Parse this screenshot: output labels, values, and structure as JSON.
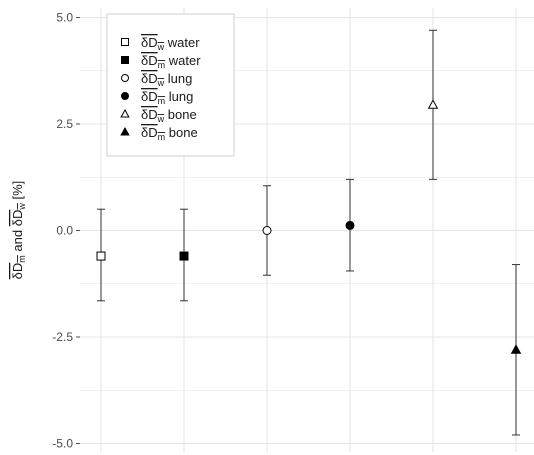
{
  "chart_data": {
    "type": "scatter",
    "title": "",
    "xlabel": "",
    "ylabel": {
      "prefix": "δD",
      "first_subscript": "m",
      "joiner": "and",
      "second_subscript": "w",
      "unit": "[%]"
    },
    "ylim": [
      -5.0,
      5.0
    ],
    "y_ticks": [
      {
        "value": 5.0,
        "label": "5.0"
      },
      {
        "value": 2.5,
        "label": "2.5"
      },
      {
        "value": 0.0,
        "label": "0.0"
      },
      {
        "value": -2.5,
        "label": "-2.5"
      },
      {
        "value": -5.0,
        "label": "-5.0"
      }
    ],
    "grid": true,
    "legend_position": "top-left",
    "series": [
      {
        "base": "δD",
        "subscript": "w",
        "medium": "water",
        "marker": "open-square",
        "x": 1,
        "y": -0.6,
        "err_low": -1.65,
        "err_high": 0.5
      },
      {
        "base": "δD",
        "subscript": "m",
        "medium": "water",
        "marker": "filled-square",
        "x": 2,
        "y": -0.6,
        "err_low": -1.65,
        "err_high": 0.5
      },
      {
        "base": "δD",
        "subscript": "w",
        "medium": "lung",
        "marker": "open-circle",
        "x": 3,
        "y": 0.0,
        "err_low": -1.05,
        "err_high": 1.05
      },
      {
        "base": "δD",
        "subscript": "m",
        "medium": "lung",
        "marker": "filled-circle",
        "x": 4,
        "y": 0.12,
        "err_low": -0.95,
        "err_high": 1.2
      },
      {
        "base": "δD",
        "subscript": "w",
        "medium": "bone",
        "marker": "open-triangle",
        "x": 5,
        "y": 2.95,
        "err_low": 1.2,
        "err_high": 4.7
      },
      {
        "base": "δD",
        "subscript": "m",
        "medium": "bone",
        "marker": "filled-triangle",
        "x": 6,
        "y": -2.8,
        "err_low": -4.8,
        "err_high": -0.8
      }
    ],
    "colors": {
      "marker": "#000000",
      "errorbar": "#333333",
      "grid": "#e5e5e5",
      "axis": "#4d4d4d"
    }
  }
}
